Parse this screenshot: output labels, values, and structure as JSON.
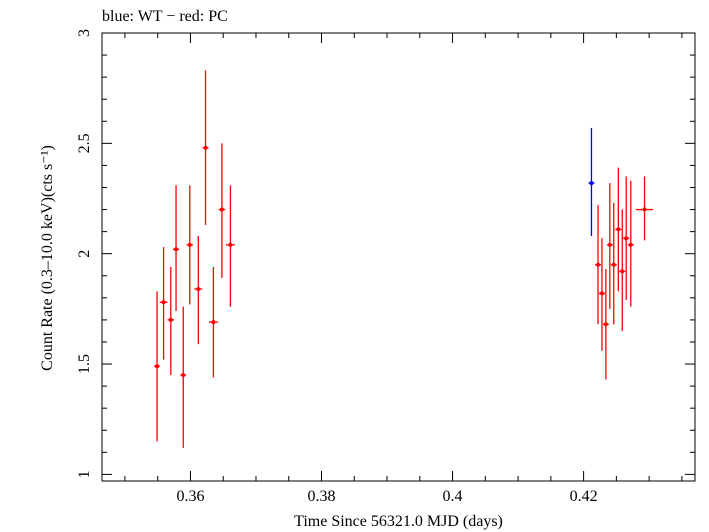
{
  "chart_data": {
    "type": "scatter",
    "title": "blue: WT − red: PC",
    "xlabel": "Time Since 56321.0 MJD (days)",
    "ylabel": "Count Rate (0.3–10.0 keV)(cts s⁻¹)",
    "xlim": [
      0.3465,
      0.437
    ],
    "ylim": [
      0.97,
      3.0
    ],
    "x_ticks": [
      0.36,
      0.38,
      0.4,
      0.42
    ],
    "x_tick_labels": [
      "0.36",
      "0.38",
      "0.4",
      "0.42"
    ],
    "y_ticks": [
      1,
      1.5,
      2,
      2.5,
      3
    ],
    "y_tick_labels": [
      "1",
      "1.5",
      "2",
      "2.5",
      "3"
    ],
    "grid": false,
    "series": [
      {
        "name": "WT",
        "color": "#0000ff",
        "points": [
          {
            "x": 0.4212,
            "y": 2.32,
            "ylo": 2.08,
            "yhi": 2.57,
            "xerr": 0.0001
          }
        ]
      },
      {
        "name": "PC",
        "color": "#ff0000",
        "points": [
          {
            "x": 0.3549,
            "y": 1.49,
            "ylo": 1.15,
            "yhi": 1.83,
            "xerr": 0.0004
          },
          {
            "x": 0.3559,
            "y": 1.78,
            "ylo": 1.52,
            "yhi": 2.03,
            "xerr": 0.0006
          },
          {
            "x": 0.357,
            "y": 1.7,
            "ylo": 1.45,
            "yhi": 1.94,
            "xerr": 0.0005
          },
          {
            "x": 0.3578,
            "y": 2.02,
            "ylo": 1.74,
            "yhi": 2.31,
            "xerr": 0.0005
          },
          {
            "x": 0.3589,
            "y": 1.45,
            "ylo": 1.12,
            "yhi": 1.76,
            "xerr": 0.0002
          },
          {
            "x": 0.3599,
            "y": 2.04,
            "ylo": 1.77,
            "yhi": 2.31,
            "xerr": 0.0005
          },
          {
            "x": 0.3612,
            "y": 1.84,
            "ylo": 1.59,
            "yhi": 2.08,
            "xerr": 0.0006
          },
          {
            "x": 0.3623,
            "y": 2.48,
            "ylo": 2.13,
            "yhi": 2.83,
            "xerr": 0.0003
          },
          {
            "x": 0.3635,
            "y": 1.69,
            "ylo": 1.44,
            "yhi": 1.94,
            "xerr": 0.0007
          },
          {
            "x": 0.3648,
            "y": 2.2,
            "ylo": 1.89,
            "yhi": 2.5,
            "xerr": 0.0005
          },
          {
            "x": 0.3661,
            "y": 2.04,
            "ylo": 1.76,
            "yhi": 2.31,
            "xerr": 0.0007
          },
          {
            "x": 0.4222,
            "y": 1.95,
            "ylo": 1.68,
            "yhi": 2.22,
            "xerr": 0.0004
          },
          {
            "x": 0.4228,
            "y": 1.82,
            "ylo": 1.56,
            "yhi": 2.07,
            "xerr": 0.0002
          },
          {
            "x": 0.4234,
            "y": 1.68,
            "ylo": 1.43,
            "yhi": 1.93,
            "xerr": 0.0003
          },
          {
            "x": 0.424,
            "y": 2.04,
            "ylo": 1.75,
            "yhi": 2.32,
            "xerr": 0.0003
          },
          {
            "x": 0.4246,
            "y": 1.95,
            "ylo": 1.68,
            "yhi": 2.23,
            "xerr": 0.0003
          },
          {
            "x": 0.4253,
            "y": 2.11,
            "ylo": 1.83,
            "yhi": 2.39,
            "xerr": 0.0003
          },
          {
            "x": 0.4259,
            "y": 1.92,
            "ylo": 1.65,
            "yhi": 2.2,
            "xerr": 0.0003
          },
          {
            "x": 0.4265,
            "y": 2.07,
            "ylo": 1.79,
            "yhi": 2.35,
            "xerr": 0.0003
          },
          {
            "x": 0.4272,
            "y": 2.04,
            "ylo": 1.76,
            "yhi": 2.33,
            "xerr": 0.0004
          },
          {
            "x": 0.4293,
            "y": 2.2,
            "ylo": 2.06,
            "yhi": 2.35,
            "xerr": 0.0013
          }
        ]
      }
    ]
  }
}
